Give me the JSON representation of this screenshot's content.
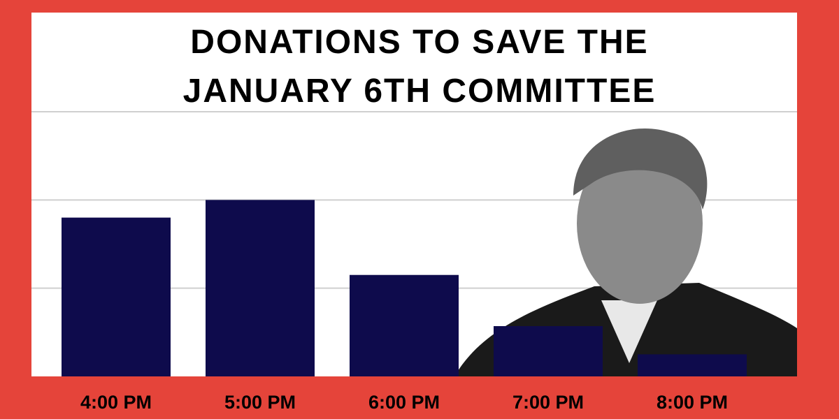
{
  "chart_data": {
    "type": "bar",
    "title": "DONATIONS TO SAVE THE JANUARY 6TH COMMITTEE",
    "categories": [
      "4:00 PM",
      "5:00 PM",
      "6:00 PM",
      "7:00 PM",
      "8:00 PM"
    ],
    "values": [
      1.8,
      2.0,
      1.15,
      0.57,
      0.25
    ],
    "color": "#0e0b4c",
    "ylim": [
      0,
      3
    ],
    "yticks": [
      1,
      2,
      3
    ],
    "grid": true
  }
}
